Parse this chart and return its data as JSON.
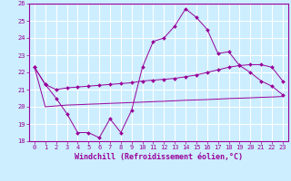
{
  "x": [
    0,
    1,
    2,
    3,
    4,
    5,
    6,
    7,
    8,
    9,
    10,
    11,
    12,
    13,
    14,
    15,
    16,
    17,
    18,
    19,
    20,
    21,
    22,
    23
  ],
  "y_main": [
    22.3,
    21.3,
    20.5,
    19.6,
    18.5,
    18.5,
    18.2,
    19.3,
    18.5,
    19.8,
    22.3,
    23.8,
    24.0,
    24.7,
    25.7,
    25.2,
    24.5,
    23.1,
    23.2,
    22.4,
    22.0,
    21.5,
    21.2,
    20.7
  ],
  "y_upper": [
    22.3,
    21.3,
    21.0,
    21.1,
    21.15,
    21.2,
    21.25,
    21.3,
    21.35,
    21.4,
    21.5,
    21.55,
    21.6,
    21.65,
    21.75,
    21.85,
    22.0,
    22.15,
    22.3,
    22.4,
    22.45,
    22.45,
    22.3,
    21.5
  ],
  "y_lower": [
    22.3,
    20.0,
    20.05,
    20.1,
    20.12,
    20.15,
    20.17,
    20.2,
    20.22,
    20.25,
    20.27,
    20.3,
    20.32,
    20.35,
    20.38,
    20.4,
    20.42,
    20.45,
    20.48,
    20.5,
    20.52,
    20.55,
    20.57,
    20.6
  ],
  "ylim": [
    18,
    26
  ],
  "xlim": [
    -0.5,
    23.5
  ],
  "yticks": [
    18,
    19,
    20,
    21,
    22,
    23,
    24,
    25,
    26
  ],
  "xticks": [
    0,
    1,
    2,
    3,
    4,
    5,
    6,
    7,
    8,
    9,
    10,
    11,
    12,
    13,
    14,
    15,
    16,
    17,
    18,
    19,
    20,
    21,
    22,
    23
  ],
  "xlabel": "Windchill (Refroidissement éolien,°C)",
  "line_color": "#990099",
  "bg_color": "#cceeff",
  "grid_color": "#ffffff",
  "tick_fontsize": 5.0,
  "xlabel_fontsize": 6.0,
  "marker": "D",
  "marker_size": 2.0
}
